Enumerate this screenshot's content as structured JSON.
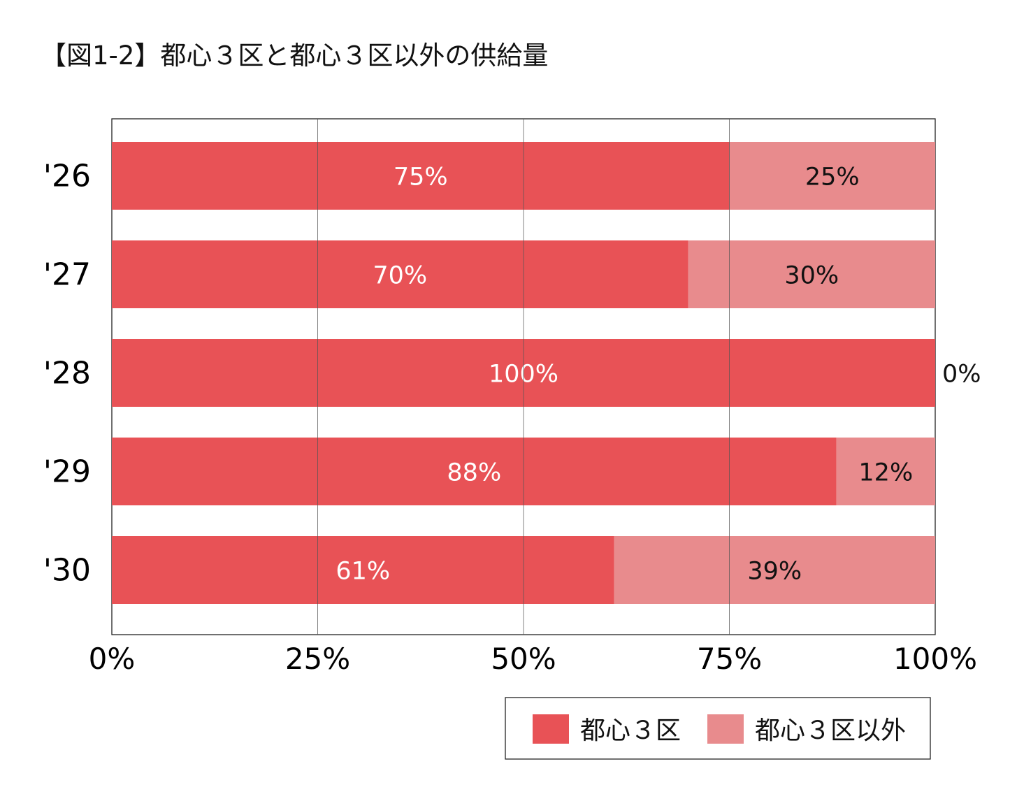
{
  "chart_data": {
    "type": "bar",
    "orientation": "horizontal",
    "stacked": "percent",
    "title": "【図1-2】都心３区と都心３区以外の供給量",
    "categories": [
      "'26",
      "'27",
      "'28",
      "'29",
      "'30"
    ],
    "series": [
      {
        "name": "都心３区",
        "values": [
          75,
          70,
          100,
          88,
          61
        ],
        "color": "#e85256"
      },
      {
        "name": "都心３区以外",
        "values": [
          25,
          30,
          0,
          12,
          39
        ],
        "color": "#e88b8d"
      }
    ],
    "data_labels": [
      [
        "75%",
        "70%",
        "100%",
        "88%",
        "61%"
      ],
      [
        "25%",
        "30%",
        "0%",
        "12%",
        "39%"
      ]
    ],
    "x_ticks": [
      "0%",
      "25%",
      "50%",
      "75%",
      "100%"
    ],
    "xlim": [
      0,
      100
    ],
    "xlabel": "",
    "ylabel": "",
    "grid": true,
    "legend_position": "bottom-right"
  }
}
